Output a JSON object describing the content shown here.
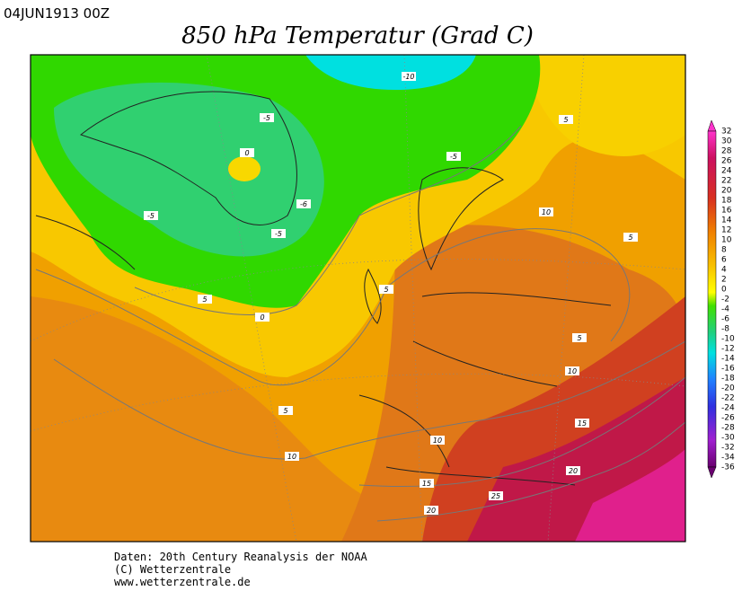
{
  "header": {
    "date": "04JUN1913 00Z",
    "title": "850 hPa Temperatur (Grad C)"
  },
  "colorbar": {
    "levels": [
      32,
      30,
      28,
      26,
      24,
      22,
      20,
      18,
      16,
      14,
      12,
      10,
      8,
      6,
      4,
      2,
      0,
      -2,
      -4,
      -6,
      -8,
      -10,
      -12,
      -14,
      -16,
      -18,
      -20,
      -22,
      -24,
      -26,
      -28,
      -30,
      -32,
      -34,
      -36
    ]
  },
  "map": {
    "contour_labels": [
      -10,
      -5,
      5,
      0,
      -5,
      -5,
      -6,
      10,
      -5,
      5,
      5,
      5,
      0,
      5,
      10,
      5,
      15,
      10,
      10,
      20,
      15,
      25,
      20
    ]
  },
  "footer": {
    "lines": [
      "Daten: 20th Century Reanalysis der NOAA",
      "(C) Wetterzentrale",
      "www.wetterzentrale.de"
    ]
  }
}
